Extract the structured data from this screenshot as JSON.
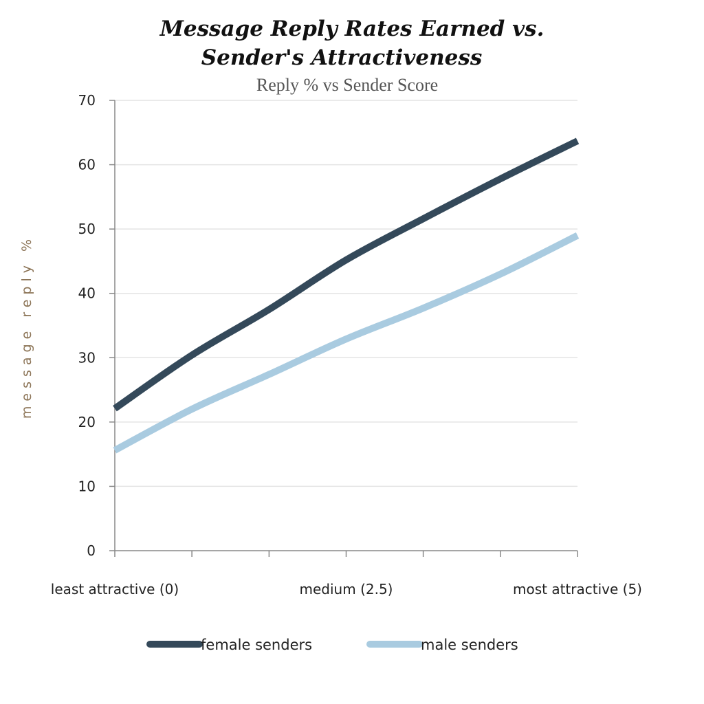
{
  "chart_data": {
    "type": "line",
    "title": "Message Reply Rates Earned vs. Sender's Attractiveness",
    "title_lines": [
      "Message Reply Rates Earned vs.",
      "Sender's Attractiveness"
    ],
    "subtitle": "Reply % vs Sender Score",
    "xlabel": "",
    "ylabel": "message reply %",
    "xlim": [
      0,
      5
    ],
    "ylim": [
      0,
      70
    ],
    "yticks": [
      0,
      10,
      20,
      30,
      40,
      50,
      60,
      70
    ],
    "xtick_positions": [
      0,
      0.833,
      1.667,
      2.5,
      3.333,
      4.167,
      5
    ],
    "xtick_labels": [
      {
        "x": 0,
        "label": "least attractive (0)"
      },
      {
        "x": 2.5,
        "label": "medium (2.5)"
      },
      {
        "x": 5,
        "label": "most attractive  (5)"
      }
    ],
    "grid": true,
    "legend_position": "bottom",
    "x": [
      0,
      0.833,
      1.667,
      2.5,
      3.333,
      4.167,
      5
    ],
    "series": [
      {
        "name": "female senders",
        "color": "#34495a",
        "values": [
          22.1,
          30.4,
          37.5,
          45.2,
          51.6,
          57.8,
          63.7
        ]
      },
      {
        "name": "male senders",
        "color": "#a9cbe0",
        "values": [
          15.6,
          22.0,
          27.4,
          32.9,
          37.7,
          43.0,
          49.0
        ]
      }
    ]
  }
}
